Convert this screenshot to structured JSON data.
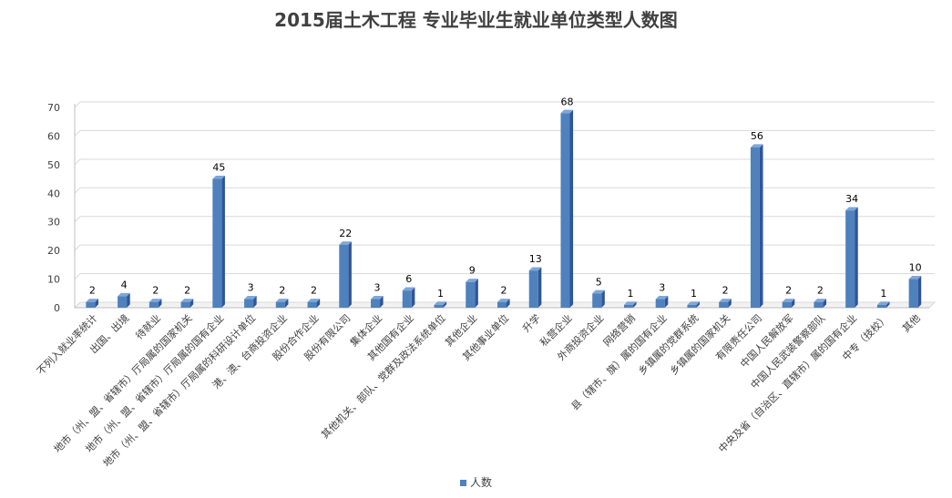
{
  "chart_data": {
    "type": "bar",
    "title": "2015届土木工程 专业毕业生就业单位类型人数图",
    "categories": [
      "不列入就业率统计",
      "出国、出境",
      "待就业",
      "地市（州、盟、省辖市）厅局属的国家机关",
      "地市（州、盟、省辖市）厅局属的国有企业",
      "地市（州、盟、省辖市）厅局属的科研设计单位",
      "港、澳、台商投资企业",
      "股份合作企业",
      "股份有限公司",
      "集体企业",
      "其他国有企业",
      "其他机关、部队、党群及政法系统单位",
      "其他企业",
      "其他事业单位",
      "升学",
      "私营企业",
      "外商投资企业",
      "网络营销",
      "县（辖市、旗）属的国有企业",
      "乡镇属的党群系统",
      "乡镇属的国家机关",
      "有限责任公司",
      "中国人民解放军",
      "中国人民武装警察部队",
      "中央及省（自治区、直辖市）属的国有企业",
      "中专（技校）",
      "其他"
    ],
    "series": [
      {
        "name": "人数",
        "color": "#4f81bd",
        "values": [
          2,
          4,
          2,
          2,
          45,
          3,
          2,
          2,
          22,
          3,
          6,
          1,
          9,
          2,
          13,
          68,
          5,
          1,
          3,
          1,
          2,
          56,
          2,
          2,
          34,
          1,
          10
        ]
      }
    ],
    "ylim": [
      0,
      70
    ],
    "yticks": [
      "0",
      "10",
      "20",
      "30",
      "40",
      "50",
      "60",
      "70"
    ],
    "grid": true,
    "legend_position": "bottom",
    "data_labels": true
  }
}
